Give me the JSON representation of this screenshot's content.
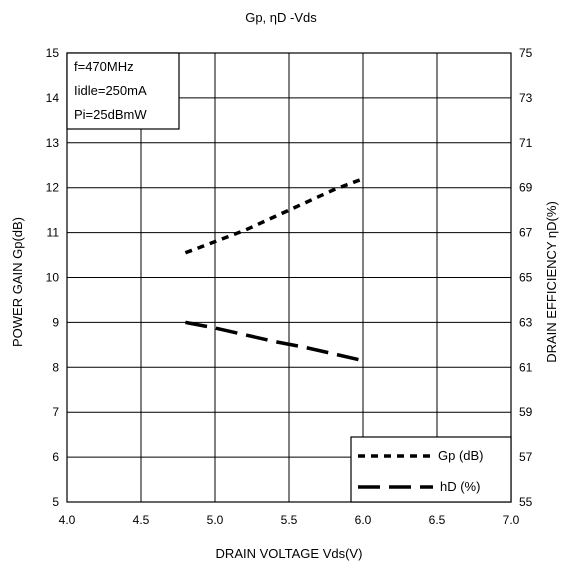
{
  "chart_data": {
    "type": "line",
    "title": "Gp, ηD -Vds",
    "title_parts": {
      "a": "Gp, ",
      "eta": "η",
      "b": "D -Vds"
    },
    "xlabel": "DRAIN VOLTAGE Vds(V)",
    "ylabel_left": "POWER GAIN Gp(dB)",
    "ylabel_right": "DRAIN EFFICIENCY ηD(%)",
    "ylabel_right_parts": {
      "a": "DRAIN EFFICIENCY ",
      "eta": "η",
      "b": "D(%)"
    },
    "xlim": [
      4.0,
      7.0
    ],
    "ylim_left": [
      5,
      15
    ],
    "ylim_right": [
      55,
      75
    ],
    "x_ticks": [
      "4.0",
      "4.5",
      "5.0",
      "5.5",
      "6.0",
      "6.5",
      "7.0"
    ],
    "y_left_ticks": [
      "5",
      "6",
      "7",
      "8",
      "9",
      "10",
      "11",
      "12",
      "13",
      "14",
      "15"
    ],
    "y_right_ticks": [
      "55",
      "57",
      "59",
      "61",
      "63",
      "65",
      "67",
      "69",
      "71",
      "73",
      "75"
    ],
    "grid": true,
    "conditions": [
      "f=470MHz",
      "Iidle=250mA",
      "Pi=25dBmW"
    ],
    "series": [
      {
        "name": "Gp (dB)",
        "axis": "left",
        "style": "dotted",
        "x": [
          4.8,
          5.0,
          5.2,
          5.4,
          5.6,
          5.8,
          6.0
        ],
        "y": [
          10.55,
          10.8,
          11.05,
          11.35,
          11.65,
          11.95,
          12.2
        ]
      },
      {
        "name": "hD (%)",
        "axis": "right",
        "style": "dashed",
        "x": [
          4.8,
          5.0,
          5.2,
          5.4,
          5.6,
          5.8,
          6.0
        ],
        "y": [
          63.0,
          62.75,
          62.45,
          62.15,
          61.9,
          61.6,
          61.3
        ]
      }
    ],
    "legend_position": "bottom-right"
  }
}
